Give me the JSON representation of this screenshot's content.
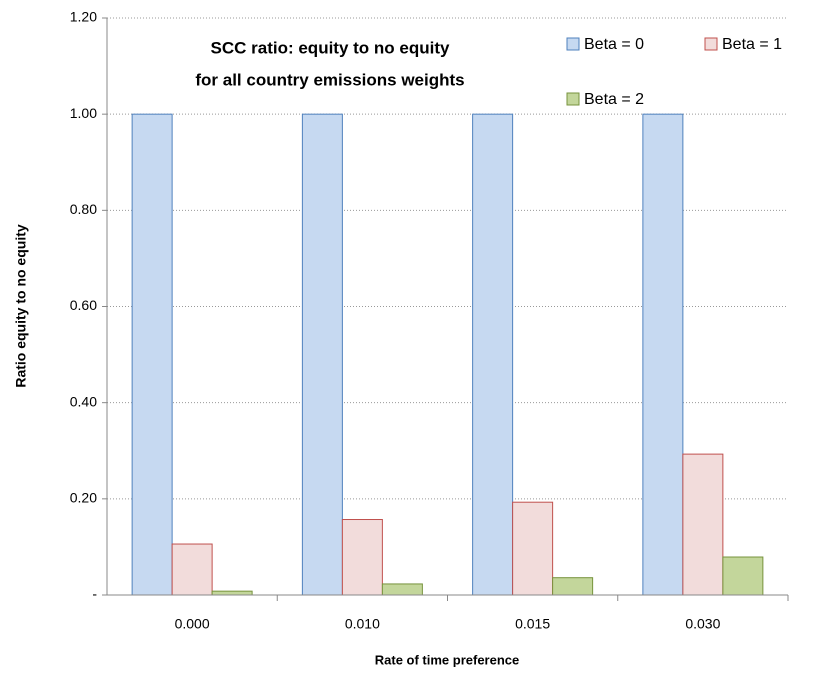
{
  "chart_data": {
    "type": "bar",
    "title": [
      "SCC ratio: equity to no equity",
      "for all country emissions weights"
    ],
    "x_label": "Rate of time preference",
    "y_label": "Ratio equity to no equity",
    "categories": [
      "0.000",
      "0.010",
      "0.015",
      "0.030"
    ],
    "series": [
      {
        "name": "Beta = 0",
        "color": "#c6d9f1",
        "edge_color": "#4f81bd",
        "values": [
          1.0,
          1.0,
          1.0,
          1.0
        ]
      },
      {
        "name": "Beta = 1",
        "color": "#f2dcdb",
        "edge_color": "#c0504d",
        "values": [
          0.106,
          0.157,
          0.193,
          0.293
        ]
      },
      {
        "name": "Beta = 2",
        "color": "#c3d69b",
        "edge_color": "#77933c",
        "values": [
          0.008,
          0.023,
          0.036,
          0.079
        ]
      }
    ],
    "ylim": [
      0,
      1.2
    ],
    "yticks": [
      {
        "value": 0,
        "label": "-"
      },
      {
        "value": 0.2,
        "label": "0.20"
      },
      {
        "value": 0.4,
        "label": "0.40"
      },
      {
        "value": 0.6,
        "label": "0.60"
      },
      {
        "value": 0.8,
        "label": "0.80"
      },
      {
        "value": 1.0,
        "label": "1.00"
      },
      {
        "value": 1.2,
        "label": "1.20"
      }
    ],
    "grid": true,
    "legend_position": "top-right"
  }
}
